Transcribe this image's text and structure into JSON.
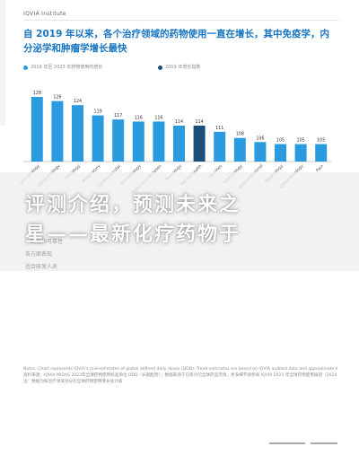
{
  "header": {
    "label": "IQVIA Institute"
  },
  "title": "自 2019 年以来，各个治疗领域的药物使用一直在增长，其中免疫学，内分泌学和肿瘤学增长最快",
  "legend": {
    "left": "2019 年至 2023 年药物使用的增长",
    "right": "2019 年增长指数"
  },
  "chart_data": {
    "type": "bar",
    "categories": [
      "Immunology",
      "Endocrinology",
      "Oncology",
      "Respiratory",
      "Cardiovascular",
      "Dermatology",
      "Infectious diseases",
      "Neurology",
      "Mental health",
      "Vaccines",
      "Hematology",
      "Gastrointestinal",
      "Nephrology",
      "Ophthalmology",
      "Pain"
    ],
    "values": [
      128,
      126,
      124,
      119,
      117,
      116,
      116,
      114,
      114,
      111,
      108,
      106,
      105,
      105,
      105
    ],
    "value_labels": [
      "128",
      "126",
      "124",
      "119",
      "117",
      "116",
      "116",
      "114",
      "114",
      "111",
      "108",
      "106",
      "105",
      "105",
      "105"
    ],
    "highlight_index": 8,
    "colors": {
      "bar": "#2b9be0",
      "highlight": "#1a4f7c",
      "label": "#333333",
      "title": "#1976c2"
    }
  },
  "overlay": {
    "line1": "评测介绍，预测未来之",
    "line2": "星——最新化疗药物于"
  },
  "faded_notes": [
    "一致性和可靠性",
    "各方面表现",
    "适合研发人员"
  ],
  "footnote": [
    "Notes: Chart represents IQVIA's mid-estimates of global defined daily doses (DDD). Trend estimates are based on IQVIA audited data and approximate IQVIA PROSPECT (2023 (IQVIA 2023)",
    "资料来源：IQVIA MIDAS 2023年全球药物使用标准单位 DDD（长期趋势）；数据来源于已审计的全球药品市场。更多细节请参阅 IQVIA 2023 年全球药物使用展望（2024 (2023 review)，2024 年后数据为预测值",
    "注：数据为按治疗领域划分的全球药物使用增长估计值"
  ]
}
